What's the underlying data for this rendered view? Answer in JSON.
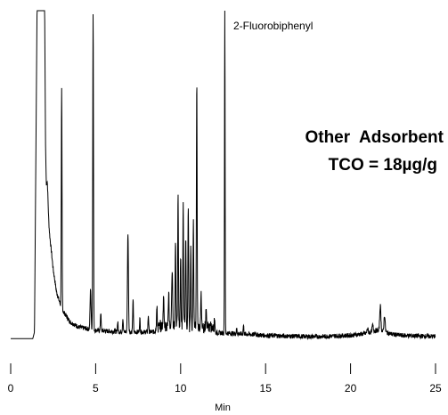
{
  "chart_data": {
    "type": "line",
    "title": "",
    "xlabel": "Min",
    "ylabel": "",
    "xlim": [
      0,
      25
    ],
    "ylim": [
      0,
      100
    ],
    "x_ticks": [
      0,
      5,
      10,
      15,
      20,
      25
    ],
    "x_tick_labels": [
      "0",
      "5",
      "10",
      "15",
      "20",
      "25"
    ],
    "grid": false,
    "annotations": [
      {
        "id": "peak",
        "text": "2-Fluorobiphenyl",
        "x": 12.6
      },
      {
        "id": "line1",
        "text": "Other  Adsorbent"
      },
      {
        "id": "line2",
        "text": "TCO = 18µg/g"
      }
    ],
    "baseline": [
      [
        0,
        1.0
      ],
      [
        1.3,
        1.0
      ],
      [
        1.4,
        3.0
      ],
      [
        1.55,
        100
      ],
      [
        2.0,
        100
      ],
      [
        2.05,
        60
      ],
      [
        2.1,
        45
      ],
      [
        2.3,
        32
      ],
      [
        2.5,
        22
      ],
      [
        2.7,
        15
      ],
      [
        3.0,
        10
      ],
      [
        3.5,
        6
      ],
      [
        4.0,
        4.5
      ],
      [
        5.0,
        3.5
      ],
      [
        6.0,
        3.2
      ],
      [
        7.0,
        3.0
      ],
      [
        8.0,
        3.0
      ],
      [
        9.0,
        3.1
      ],
      [
        10.0,
        3.5
      ],
      [
        11.0,
        3.2
      ],
      [
        12.0,
        2.8
      ],
      [
        13.0,
        2.6
      ],
      [
        14.0,
        2.3
      ],
      [
        15.0,
        2.0
      ],
      [
        16.0,
        1.8
      ],
      [
        17.0,
        1.7
      ],
      [
        18.0,
        1.6
      ],
      [
        19.0,
        1.8
      ],
      [
        20.0,
        2.0
      ],
      [
        21.0,
        2.6
      ],
      [
        21.5,
        3.5
      ],
      [
        22.0,
        3.0
      ],
      [
        22.5,
        2.3
      ],
      [
        23.0,
        2.0
      ],
      [
        24.0,
        1.8
      ],
      [
        25.0,
        1.7
      ]
    ],
    "peaks": [
      {
        "x": 2.15,
        "y": 48,
        "w": 0.05
      },
      {
        "x": 2.2,
        "y": 40,
        "w": 0.04
      },
      {
        "x": 3.0,
        "y": 76,
        "w": 0.03
      },
      {
        "x": 4.7,
        "y": 16,
        "w": 0.04
      },
      {
        "x": 4.85,
        "y": 100,
        "w": 0.03
      },
      {
        "x": 5.3,
        "y": 9,
        "w": 0.03
      },
      {
        "x": 6.3,
        "y": 6,
        "w": 0.03
      },
      {
        "x": 6.6,
        "y": 7,
        "w": 0.03
      },
      {
        "x": 6.9,
        "y": 33,
        "w": 0.04
      },
      {
        "x": 7.2,
        "y": 13,
        "w": 0.03
      },
      {
        "x": 7.6,
        "y": 7,
        "w": 0.03
      },
      {
        "x": 8.1,
        "y": 8,
        "w": 0.03
      },
      {
        "x": 8.6,
        "y": 9,
        "w": 0.03
      },
      {
        "x": 9.0,
        "y": 12,
        "w": 0.04
      },
      {
        "x": 9.3,
        "y": 14,
        "w": 0.03
      },
      {
        "x": 9.5,
        "y": 20,
        "w": 0.04
      },
      {
        "x": 9.7,
        "y": 30,
        "w": 0.03
      },
      {
        "x": 9.85,
        "y": 43,
        "w": 0.03
      },
      {
        "x": 10.0,
        "y": 24,
        "w": 0.03
      },
      {
        "x": 10.15,
        "y": 40,
        "w": 0.03
      },
      {
        "x": 10.3,
        "y": 30,
        "w": 0.03
      },
      {
        "x": 10.45,
        "y": 39,
        "w": 0.03
      },
      {
        "x": 10.6,
        "y": 26,
        "w": 0.03
      },
      {
        "x": 10.75,
        "y": 36,
        "w": 0.03
      },
      {
        "x": 10.95,
        "y": 77,
        "w": 0.03
      },
      {
        "x": 11.2,
        "y": 14,
        "w": 0.03
      },
      {
        "x": 11.5,
        "y": 8,
        "w": 0.03
      },
      {
        "x": 12.0,
        "y": 7,
        "w": 0.03
      },
      {
        "x": 12.6,
        "y": 100,
        "w": 0.025
      },
      {
        "x": 13.3,
        "y": 4,
        "w": 0.03
      },
      {
        "x": 13.7,
        "y": 5,
        "w": 0.03
      },
      {
        "x": 14.4,
        "y": 3,
        "w": 0.03
      },
      {
        "x": 21.0,
        "y": 4,
        "w": 0.05
      },
      {
        "x": 21.3,
        "y": 5,
        "w": 0.05
      },
      {
        "x": 21.75,
        "y": 11,
        "w": 0.05
      },
      {
        "x": 22.0,
        "y": 8,
        "w": 0.05
      }
    ]
  }
}
